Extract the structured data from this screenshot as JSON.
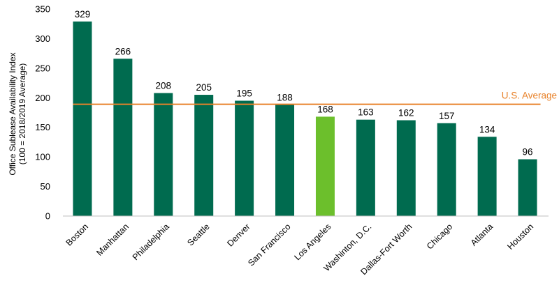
{
  "chart_data": {
    "type": "bar",
    "ylabel": [
      "Office Sublease Availability Index",
      "(100 = 2018/2019 Average)"
    ],
    "ylim": [
      0,
      350
    ],
    "yticks": [
      0,
      50,
      100,
      150,
      200,
      250,
      300,
      350
    ],
    "categories": [
      "Boston",
      "Manhattan",
      "Philadelphia",
      "Seattle",
      "Denver",
      "San Francisco",
      "Los Angeles",
      "Washinton, D.C.",
      "Dallas-Fort Worth",
      "Chicago",
      "Atlanta",
      "Houston"
    ],
    "values": [
      329,
      266,
      208,
      205,
      195,
      188,
      168,
      163,
      162,
      157,
      134,
      96
    ],
    "highlight_category": "Los Angeles",
    "reference_line": {
      "label": "U.S. Average",
      "value": 189
    },
    "colors": {
      "bar": "#006b4f",
      "highlight": "#6cbf2c",
      "reference": "#e8822a"
    },
    "grid": false,
    "legend": "none"
  }
}
